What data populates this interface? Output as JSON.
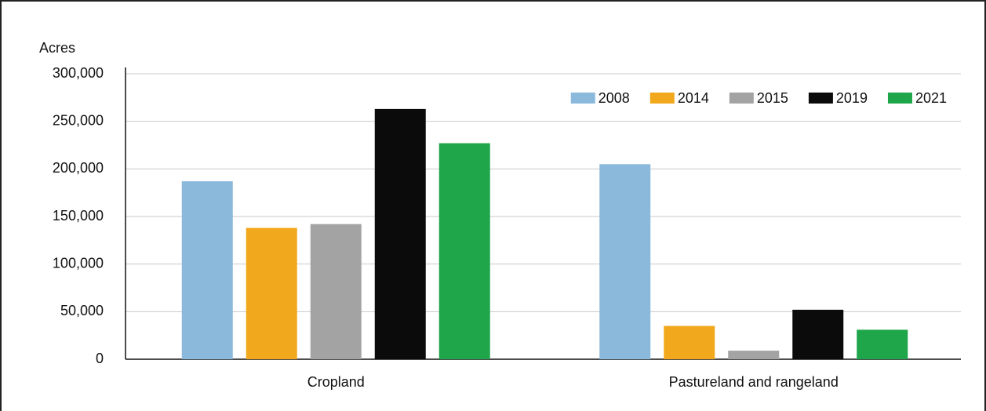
{
  "chart_data": {
    "type": "bar",
    "y_label": "Acres",
    "categories": [
      "Cropland",
      "Pastureland and rangeland"
    ],
    "series": [
      {
        "name": "2008",
        "color": "#8ab9dc",
        "values": [
          187000,
          205000
        ]
      },
      {
        "name": "2014",
        "color": "#f2a81d",
        "values": [
          138000,
          35000
        ]
      },
      {
        "name": "2015",
        "color": "#a3a3a3",
        "values": [
          142000,
          9000
        ]
      },
      {
        "name": "2019",
        "color": "#0b0b0b",
        "values": [
          263000,
          52000
        ]
      },
      {
        "name": "2021",
        "color": "#1fa64a",
        "values": [
          227000,
          31000
        ]
      }
    ],
    "ylim": [
      0,
      300000
    ],
    "yticks": [
      0,
      {
        "value": 50000,
        "label": "50,000"
      },
      {
        "value": 100000,
        "label": "100,000"
      },
      {
        "value": 150000,
        "label": "150,000"
      },
      {
        "value": 200000,
        "label": "200,000"
      },
      {
        "value": 250000,
        "label": "250,000"
      },
      {
        "value": 300000,
        "label": "300,000"
      }
    ],
    "grid": true,
    "legend": "upper right"
  }
}
